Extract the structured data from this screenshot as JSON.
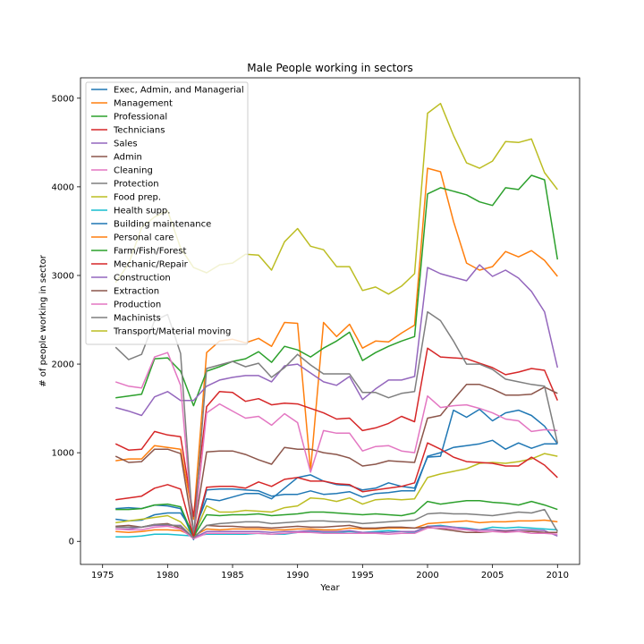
{
  "chart_data": {
    "type": "line",
    "title": "Male People working in sectors",
    "xlabel": "Year",
    "ylabel": "# of people working in sector",
    "xlim": [
      1973.3,
      2011.7
    ],
    "ylim": [
      -260,
      5230
    ],
    "xticks": [
      1975,
      1980,
      1985,
      1990,
      1995,
      2000,
      2005,
      2010
    ],
    "yticks": [
      0,
      1000,
      2000,
      3000,
      4000,
      5000
    ],
    "grid": false,
    "legend_position": "top-left",
    "x": [
      1976,
      1977,
      1978,
      1979,
      1980,
      1981,
      1982,
      1983,
      1984,
      1985,
      1986,
      1987,
      1988,
      1989,
      1990,
      1991,
      1992,
      1993,
      1994,
      1995,
      1996,
      1997,
      1998,
      1999,
      2000,
      2001,
      2002,
      2003,
      2004,
      2005,
      2006,
      2007,
      2008,
      2009,
      2010
    ],
    "series": [
      {
        "name": "Exec, Admin, and Managerial",
        "color": "#1f77b4",
        "values": [
          250,
          230,
          240,
          300,
          320,
          320,
          100,
          480,
          460,
          500,
          540,
          540,
          480,
          600,
          720,
          750,
          680,
          640,
          630,
          580,
          600,
          660,
          620,
          600,
          950,
          960,
          1480,
          1400,
          1490,
          1360,
          1450,
          1480,
          1420,
          1300,
          1100
        ]
      },
      {
        "name": "Management",
        "color": "#ff7f0e",
        "values": [
          910,
          930,
          930,
          1080,
          1060,
          1040,
          250,
          2130,
          2260,
          2280,
          2240,
          2290,
          2200,
          2470,
          2460,
          800,
          2470,
          2310,
          2450,
          2180,
          2260,
          2250,
          2350,
          2440,
          4210,
          4170,
          3610,
          3140,
          3060,
          3100,
          3270,
          3210,
          3280,
          3170,
          2990
        ]
      },
      {
        "name": "Professional",
        "color": "#2ca02c",
        "values": [
          1620,
          1640,
          1660,
          2060,
          2070,
          1920,
          1530,
          1920,
          1970,
          2030,
          2060,
          2140,
          2020,
          2200,
          2160,
          2080,
          2180,
          2260,
          2360,
          2040,
          2130,
          2200,
          2260,
          2310,
          3920,
          3990,
          3950,
          3910,
          3830,
          3790,
          3990,
          3970,
          4130,
          4080,
          3180
        ]
      },
      {
        "name": "Technicians",
        "color": "#d62728",
        "values": [
          1100,
          1030,
          1040,
          1240,
          1200,
          1180,
          280,
          1520,
          1690,
          1680,
          1580,
          1610,
          1540,
          1560,
          1550,
          1500,
          1450,
          1380,
          1390,
          1250,
          1280,
          1330,
          1410,
          1350,
          2180,
          2080,
          2070,
          2060,
          2010,
          1960,
          1880,
          1910,
          1950,
          1930,
          1590
        ]
      },
      {
        "name": "Sales",
        "color": "#9467bd",
        "values": [
          1510,
          1470,
          1420,
          1630,
          1690,
          1590,
          1590,
          1750,
          1820,
          1850,
          1870,
          1870,
          1800,
          1980,
          2000,
          1900,
          1800,
          1760,
          1860,
          1600,
          1720,
          1820,
          1820,
          1860,
          3090,
          3020,
          2980,
          2940,
          3120,
          2990,
          3060,
          2970,
          2820,
          2590,
          1960
        ]
      },
      {
        "name": "Admin",
        "color": "#8c564b",
        "values": [
          960,
          890,
          900,
          1040,
          1040,
          990,
          90,
          1010,
          1020,
          1020,
          980,
          920,
          870,
          1060,
          1040,
          1040,
          1000,
          980,
          940,
          850,
          870,
          910,
          900,
          890,
          1390,
          1420,
          1600,
          1770,
          1770,
          1720,
          1650,
          1650,
          1660,
          1740,
          1670
        ]
      },
      {
        "name": "Cleaning",
        "color": "#e377c2",
        "values": [
          1800,
          1750,
          1730,
          2080,
          2130,
          1760,
          50,
          1450,
          1550,
          1470,
          1390,
          1410,
          1310,
          1440,
          1340,
          780,
          1250,
          1220,
          1220,
          1020,
          1070,
          1080,
          1020,
          1000,
          1640,
          1510,
          1530,
          1540,
          1500,
          1450,
          1380,
          1360,
          1240,
          1260,
          1250
        ]
      },
      {
        "name": "Protection",
        "color": "#7f7f7f",
        "values": [
          2190,
          2050,
          2110,
          2490,
          2560,
          2120,
          50,
          1950,
          1990,
          2030,
          1970,
          2010,
          1850,
          1960,
          2110,
          1990,
          1890,
          1890,
          1890,
          1680,
          1680,
          1620,
          1670,
          1690,
          2590,
          2490,
          2260,
          2000,
          2000,
          1940,
          1830,
          1800,
          1770,
          1750,
          1110
        ]
      },
      {
        "name": "Food prep.",
        "color": "#bcbd22",
        "values": [
          210,
          230,
          250,
          270,
          290,
          220,
          60,
          400,
          330,
          330,
          350,
          340,
          330,
          380,
          400,
          490,
          480,
          450,
          490,
          420,
          470,
          480,
          470,
          480,
          720,
          760,
          790,
          820,
          880,
          890,
          880,
          900,
          930,
          990,
          960
        ]
      },
      {
        "name": "Health supp.",
        "color": "#17becf",
        "values": [
          50,
          50,
          60,
          80,
          80,
          70,
          60,
          80,
          80,
          80,
          80,
          90,
          80,
          80,
          100,
          110,
          100,
          100,
          110,
          100,
          110,
          120,
          110,
          100,
          170,
          180,
          160,
          150,
          130,
          160,
          150,
          160,
          150,
          140,
          130
        ]
      },
      {
        "name": "Building maintenance",
        "color": "#1f77b4",
        "values": [
          370,
          380,
          370,
          410,
          400,
          370,
          20,
          580,
          590,
          590,
          580,
          570,
          510,
          530,
          530,
          570,
          530,
          540,
          560,
          500,
          540,
          550,
          570,
          570,
          960,
          1000,
          1060,
          1080,
          1100,
          1140,
          1040,
          1110,
          1050,
          1100,
          1100
        ]
      },
      {
        "name": "Personal care",
        "color": "#ff7f0e",
        "values": [
          110,
          100,
          110,
          130,
          130,
          120,
          60,
          140,
          130,
          140,
          140,
          140,
          130,
          130,
          140,
          140,
          130,
          130,
          150,
          140,
          140,
          150,
          150,
          150,
          200,
          210,
          220,
          230,
          210,
          220,
          220,
          230,
          230,
          240,
          220
        ]
      },
      {
        "name": "Farm/Fish/Forest",
        "color": "#2ca02c",
        "values": [
          360,
          360,
          370,
          410,
          420,
          390,
          50,
          300,
          290,
          300,
          300,
          310,
          290,
          300,
          310,
          330,
          330,
          320,
          310,
          300,
          310,
          300,
          290,
          320,
          450,
          420,
          440,
          460,
          460,
          440,
          430,
          410,
          450,
          410,
          360
        ]
      },
      {
        "name": "Mechanic/Repair",
        "color": "#d62728",
        "values": [
          470,
          490,
          510,
          600,
          640,
          590,
          50,
          610,
          620,
          620,
          600,
          670,
          620,
          700,
          720,
          680,
          680,
          650,
          640,
          560,
          580,
          600,
          620,
          660,
          1110,
          1040,
          950,
          900,
          890,
          880,
          850,
          850,
          950,
          860,
          720
        ]
      },
      {
        "name": "Construction",
        "color": "#9467bd",
        "values": [
          140,
          140,
          160,
          180,
          180,
          180,
          40,
          110,
          110,
          110,
          110,
          110,
          100,
          110,
          110,
          120,
          110,
          110,
          120,
          100,
          100,
          100,
          110,
          110,
          170,
          170,
          160,
          140,
          130,
          130,
          120,
          130,
          130,
          120,
          60
        ]
      },
      {
        "name": "Extraction",
        "color": "#8c564b",
        "values": [
          170,
          180,
          160,
          190,
          200,
          150,
          40,
          180,
          170,
          170,
          160,
          160,
          150,
          160,
          170,
          160,
          160,
          170,
          180,
          150,
          150,
          160,
          160,
          150,
          160,
          140,
          120,
          100,
          100,
          110,
          110,
          110,
          110,
          100,
          100
        ]
      },
      {
        "name": "Production",
        "color": "#e377c2",
        "values": [
          140,
          130,
          130,
          160,
          170,
          140,
          30,
          90,
          90,
          90,
          90,
          90,
          80,
          90,
          100,
          100,
          90,
          90,
          90,
          90,
          90,
          80,
          90,
          90,
          150,
          150,
          140,
          130,
          110,
          110,
          100,
          110,
          90,
          90,
          80
        ]
      },
      {
        "name": "Machinists",
        "color": "#7f7f7f",
        "values": [
          160,
          160,
          160,
          190,
          190,
          170,
          40,
          180,
          200,
          210,
          220,
          220,
          200,
          210,
          220,
          230,
          230,
          220,
          220,
          200,
          210,
          220,
          230,
          240,
          310,
          320,
          310,
          310,
          300,
          290,
          310,
          330,
          320,
          360,
          110
        ]
      },
      {
        "name": "Transport/Material moving",
        "color": "#bcbd22",
        "values": [
          2920,
          3130,
          3540,
          3660,
          3730,
          3310,
          3090,
          3030,
          3120,
          3140,
          3240,
          3230,
          3060,
          3380,
          3530,
          3330,
          3290,
          3100,
          3100,
          2830,
          2870,
          2790,
          2880,
          3020,
          4830,
          4940,
          4580,
          4270,
          4210,
          4290,
          4510,
          4500,
          4540,
          4160,
          3970
        ]
      }
    ]
  }
}
